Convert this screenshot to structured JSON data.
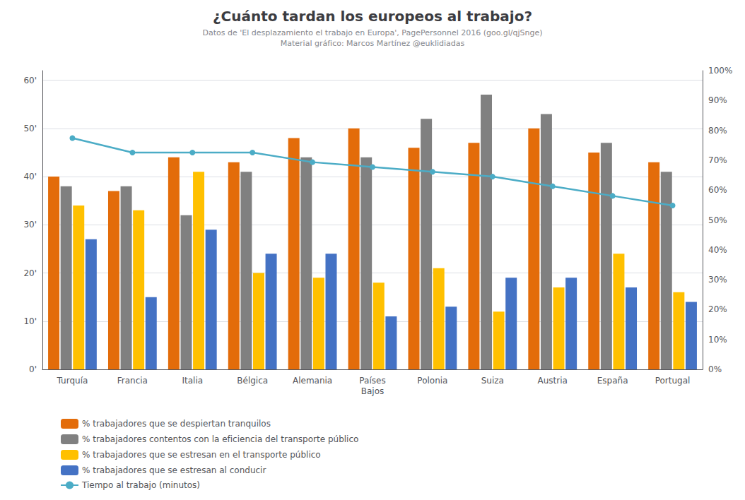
{
  "chart_data": {
    "type": "bar",
    "title": "¿Cuánto tardan los europeos al trabajo?",
    "subtitle": "Datos de 'El desplazamiento el trabajo en Europa', PagePersonnel 2016 (goo.gl/qjSnge)\nMaterial gráfico: Marcos Martínez @euklidiadas",
    "categories": [
      "Turquía",
      "Francia",
      "Italia",
      "Bélgica",
      "Alemania",
      "Países\nBajos",
      "Polonia",
      "Suiza",
      "Austria",
      "España",
      "Portugal"
    ],
    "series": [
      {
        "name": "% trabajadores que se despiertan tranquilos",
        "color": "#e36c0a",
        "values": [
          40,
          37,
          44,
          43,
          48,
          50,
          46,
          47,
          50,
          45,
          43
        ]
      },
      {
        "name": "% trabajadores contentos con la eficiencia del transporte público",
        "color": "#808080",
        "values": [
          38,
          38,
          32,
          41,
          44,
          44,
          52,
          57,
          53,
          47,
          41
        ]
      },
      {
        "name": "% trabajadores que se estresan en el transporte público",
        "color": "#ffc000",
        "values": [
          34,
          33,
          41,
          20,
          19,
          18,
          21,
          12,
          17,
          24,
          16
        ]
      },
      {
        "name": "% trabajadores que se estresan al conducir",
        "color": "#4472c4",
        "values": [
          27,
          15,
          29,
          24,
          24,
          11,
          13,
          19,
          19,
          17,
          14
        ]
      },
      {
        "name": "Tiempo al trabajo (minutos)",
        "type": "line",
        "color": "#4bacc6",
        "marker": "circle",
        "values": [
          48,
          45,
          45,
          45,
          43,
          42,
          41,
          40,
          38,
          36,
          34
        ]
      }
    ],
    "ylim": [
      0,
      62
    ],
    "yticks": [
      {
        "value": 0,
        "label": "0'"
      },
      {
        "value": 10,
        "label": "10'"
      },
      {
        "value": 20,
        "label": "20'"
      },
      {
        "value": 30,
        "label": "30'"
      },
      {
        "value": 40,
        "label": "40'"
      },
      {
        "value": 50,
        "label": "50'"
      },
      {
        "value": 60,
        "label": "60'"
      }
    ],
    "y2lim": [
      0,
      100
    ],
    "y2ticks": [
      {
        "value": 0,
        "label": "0%"
      },
      {
        "value": 10,
        "label": "10%"
      },
      {
        "value": 20,
        "label": "20%"
      },
      {
        "value": 30,
        "label": "30%"
      },
      {
        "value": 40,
        "label": "40%"
      },
      {
        "value": 50,
        "label": "50%"
      },
      {
        "value": 60,
        "label": "60%"
      },
      {
        "value": 70,
        "label": "70%"
      },
      {
        "value": 80,
        "label": "80%"
      },
      {
        "value": 90,
        "label": "90%"
      },
      {
        "value": 100,
        "label": "100%"
      }
    ],
    "grid": true,
    "legend": "lower left"
  }
}
